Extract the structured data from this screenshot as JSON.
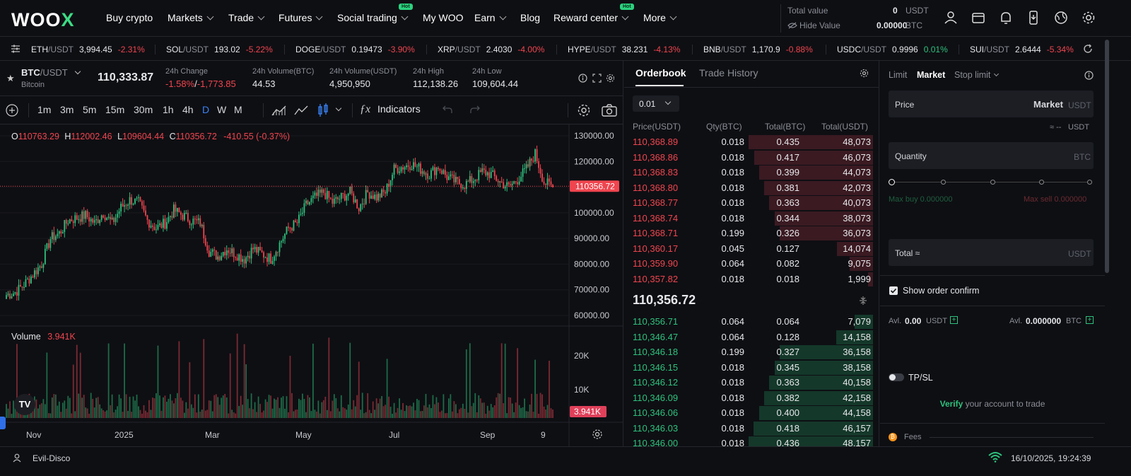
{
  "brand": {
    "logo_text": "WOO",
    "logo_x": "X"
  },
  "nav": [
    {
      "label": "Buy crypto",
      "chevron": false,
      "hot": false
    },
    {
      "label": "Markets",
      "chevron": true,
      "hot": false
    },
    {
      "label": "Trade",
      "chevron": true,
      "hot": false
    },
    {
      "label": "Futures",
      "chevron": true,
      "hot": false
    },
    {
      "label": "Social trading",
      "chevron": true,
      "hot": true
    },
    {
      "label": "My WOO",
      "chevron": false,
      "hot": false
    },
    {
      "label": "Earn",
      "chevron": true,
      "hot": false
    },
    {
      "label": "Blog",
      "chevron": false,
      "hot": false
    },
    {
      "label": "Reward center",
      "chevron": true,
      "hot": true
    },
    {
      "label": "More",
      "chevron": true,
      "hot": false
    }
  ],
  "hot_label": "Hot",
  "total_value": {
    "label": "Total value",
    "value": "0",
    "unit": "USDT",
    "hide_label": "Hide Value",
    "btc_value": "0.00000",
    "btc_unit": "BTC"
  },
  "ticker": [
    {
      "base": "ETH",
      "quote": "/USDT",
      "price": "3,994.45",
      "change": "-2.31%",
      "dir": "down"
    },
    {
      "base": "SOL",
      "quote": "/USDT",
      "price": "193.02",
      "change": "-5.22%",
      "dir": "down"
    },
    {
      "base": "DOGE",
      "quote": "/USDT",
      "price": "0.19473",
      "change": "-3.90%",
      "dir": "down"
    },
    {
      "base": "XRP",
      "quote": "/USDT",
      "price": "2.4030",
      "change": "-4.00%",
      "dir": "down"
    },
    {
      "base": "HYPE",
      "quote": "/USDT",
      "price": "38.231",
      "change": "-4.13%",
      "dir": "down"
    },
    {
      "base": "BNB",
      "quote": "/USDT",
      "price": "1,170.9",
      "change": "-0.88%",
      "dir": "down"
    },
    {
      "base": "USDC",
      "quote": "/USDT",
      "price": "0.9996",
      "change": "0.01%",
      "dir": "up"
    },
    {
      "base": "SUI",
      "quote": "/USDT",
      "price": "2.6444",
      "change": "-5.34%",
      "dir": "down"
    }
  ],
  "pair": {
    "base": "BTC",
    "quote": "/USDT",
    "name": "Bitcoin",
    "last": "110,333.87"
  },
  "stats": {
    "change_label": "24h Change",
    "change_pct": "-1.58%",
    "change_sep": "/",
    "change_abs": "-1,773.85",
    "vol_btc_label": "24h Volume(BTC)",
    "vol_btc": "44.53",
    "vol_usdt_label": "24h Volume(USDT)",
    "vol_usdt": "4,950,950",
    "high_label": "24h High",
    "high": "112,138.26",
    "low_label": "24h Low",
    "low": "109,604.44"
  },
  "toolbar": {
    "intervals": [
      "1m",
      "3m",
      "5m",
      "15m",
      "30m",
      "1h",
      "4h",
      "D",
      "W",
      "M"
    ],
    "active": "D",
    "indicators": "Indicators"
  },
  "ohlc": {
    "o_label": "O",
    "o": "110763.29",
    "h_label": "H",
    "h": "112002.46",
    "l_label": "L",
    "l": "109604.44",
    "c_label": "C",
    "c": "110356.72",
    "chg": "-410.55 (-0.37%)"
  },
  "volume": {
    "label": "Volume",
    "value": "3.941K"
  },
  "colors": {
    "up": "#2ec27e",
    "down": "#f0454f",
    "accent": "#2bd17e",
    "bg": "#0e0f13"
  },
  "chart_data": {
    "type": "candlestick",
    "price_axis": [
      "130000.00",
      "120000.00",
      "110000.00",
      "100000.00",
      "90000.00",
      "80000.00",
      "70000.00",
      "60000.00"
    ],
    "ylim": [
      57000,
      132000
    ],
    "last_price_tag": "110356.72",
    "volume_axis": [
      "20K",
      "10K"
    ],
    "volume_tag": "3.941K",
    "x_labels": [
      "Nov",
      "2025",
      "Mar",
      "May",
      "Jul",
      "Sep",
      "9"
    ],
    "weekly_close": [
      68000,
      69000,
      72000,
      76000,
      80000,
      90000,
      92000,
      97000,
      98000,
      99000,
      96000,
      100000,
      96000,
      102000,
      105000,
      104000,
      97000,
      94000,
      96000,
      101000,
      99000,
      97000,
      96000,
      85000,
      83000,
      86000,
      84000,
      82000,
      86000,
      84000,
      82000,
      88000,
      94000,
      96000,
      103000,
      106000,
      108000,
      104000,
      106000,
      108000,
      102000,
      108000,
      106000,
      108000,
      117000,
      118000,
      119000,
      117000,
      115000,
      118000,
      114000,
      112000,
      111000,
      113000,
      116000,
      115000,
      112000,
      110000,
      113000,
      117000,
      123000,
      112000,
      110000
    ]
  },
  "orderbook": {
    "tabs": [
      "Orderbook",
      "Trade History"
    ],
    "precision": "0.01",
    "headers": [
      "Price(USDT)",
      "Qty(BTC)",
      "Total(BTC)",
      "Total(USDT)"
    ],
    "asks": [
      [
        "110,368.89",
        "0.018",
        "0.435",
        "48,073"
      ],
      [
        "110,368.86",
        "0.018",
        "0.417",
        "46,073"
      ],
      [
        "110,368.83",
        "0.018",
        "0.399",
        "44,073"
      ],
      [
        "110,368.80",
        "0.018",
        "0.381",
        "42,073"
      ],
      [
        "110,368.77",
        "0.018",
        "0.363",
        "40,073"
      ],
      [
        "110,368.74",
        "0.018",
        "0.344",
        "38,073"
      ],
      [
        "110,368.71",
        "0.199",
        "0.326",
        "36,073"
      ],
      [
        "110,360.17",
        "0.045",
        "0.127",
        "14,074"
      ],
      [
        "110,359.90",
        "0.064",
        "0.082",
        "9,075"
      ],
      [
        "110,357.82",
        "0.018",
        "0.018",
        "1,999"
      ]
    ],
    "mid": "110,356.72",
    "bids": [
      [
        "110,356.71",
        "0.064",
        "0.064",
        "7,079"
      ],
      [
        "110,346.47",
        "0.064",
        "0.128",
        "14,158"
      ],
      [
        "110,346.18",
        "0.199",
        "0.327",
        "36,158"
      ],
      [
        "110,346.15",
        "0.018",
        "0.345",
        "38,158"
      ],
      [
        "110,346.12",
        "0.018",
        "0.363",
        "40,158"
      ],
      [
        "110,346.09",
        "0.018",
        "0.382",
        "42,158"
      ],
      [
        "110,346.06",
        "0.018",
        "0.400",
        "44,158"
      ],
      [
        "110,346.03",
        "0.018",
        "0.418",
        "46,157"
      ],
      [
        "110,346.00",
        "0.018",
        "0.436",
        "48,157"
      ]
    ]
  },
  "form": {
    "tabs": [
      "Limit",
      "Market",
      "Stop limit"
    ],
    "price_label": "Price",
    "price_value": "Market",
    "price_unit": "USDT",
    "approx": "≈ --",
    "approx_unit": "USDT",
    "qty_label": "Quantity",
    "qty_unit": "BTC",
    "max_buy": "Max buy 0.000000",
    "max_sell": "Max sell 0.000000",
    "total_label": "Total ≈",
    "total_unit": "USDT",
    "confirm": "Show order confirm",
    "avl_label": "Avl.",
    "avl_usdt": "0.00",
    "avl_usdt_unit": "USDT",
    "avl_btc": "0.000000",
    "avl_btc_unit": "BTC",
    "tpsl": "TP/SL",
    "verify": "Verify",
    "verify_rest": " your account to trade",
    "fees": "Fees"
  },
  "status": {
    "user": "Evil-Disco",
    "datetime": "16/10/2025, 19:24:39"
  }
}
